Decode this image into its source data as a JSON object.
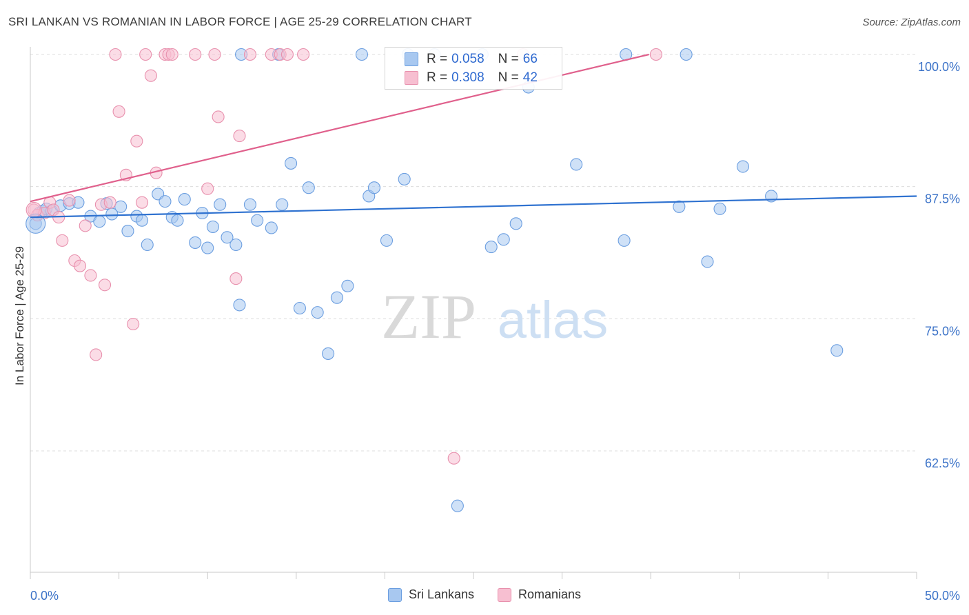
{
  "header": {
    "title": "SRI LANKAN VS ROMANIAN IN LABOR FORCE | AGE 25-29 CORRELATION CHART",
    "source": "Source: ZipAtlas.com"
  },
  "stats": [
    {
      "r_label": "R = ",
      "r_value": "0.058",
      "n_label": "N = ",
      "n_value": "66",
      "color": "#a8c8f0",
      "border": "#6b9ee0"
    },
    {
      "r_label": "R = ",
      "r_value": "0.308",
      "n_label": "N = ",
      "n_value": "42",
      "color": "#f7bfd1",
      "border": "#e890ad"
    }
  ],
  "legend": [
    {
      "label": "Sri Lankans",
      "color": "#a8c8f0",
      "border": "#6b9ee0"
    },
    {
      "label": "Romanians",
      "color": "#f7bfd1",
      "border": "#e890ad"
    }
  ],
  "watermark": {
    "zip": "ZIP",
    "atlas": "atlas"
  },
  "chart_data": {
    "type": "scatter",
    "title": "SRI LANKAN VS ROMANIAN IN LABOR FORCE | AGE 25-29 CORRELATION CHART",
    "xlabel": "",
    "ylabel": "In Labor Force | Age 25-29",
    "xlim": [
      0,
      50
    ],
    "ylim": [
      52.5,
      101.5
    ],
    "x_tick_labels": [
      "0.0%",
      "50.0%"
    ],
    "y_ticks": [
      62.5,
      75.0,
      87.5,
      100.0
    ],
    "y_tick_labels": [
      "62.5%",
      "75.0%",
      "87.5%",
      "100.0%"
    ],
    "grid": "horizontal dashed",
    "series": [
      {
        "name": "Sri Lankans",
        "color": "#6b9ee0",
        "fill": "#a8c8f0",
        "trend": {
          "x": [
            0,
            50
          ],
          "y": [
            84.6,
            86.6
          ],
          "color": "#2f72d0"
        },
        "points": [
          [
            0.3,
            84.0
          ],
          [
            0.5,
            85.0
          ],
          [
            0.7,
            85.2
          ],
          [
            0.9,
            85.4
          ],
          [
            1.2,
            85.2
          ],
          [
            1.7,
            85.7
          ],
          [
            2.2,
            85.9
          ],
          [
            2.7,
            86.0
          ],
          [
            3.4,
            84.7
          ],
          [
            3.9,
            84.2
          ],
          [
            4.3,
            85.9
          ],
          [
            4.6,
            84.9
          ],
          [
            5.1,
            85.6
          ],
          [
            5.5,
            83.3
          ],
          [
            6.0,
            84.7
          ],
          [
            6.3,
            84.3
          ],
          [
            6.6,
            82.0
          ],
          [
            7.2,
            86.8
          ],
          [
            7.6,
            86.1
          ],
          [
            8.0,
            84.6
          ],
          [
            8.3,
            84.3
          ],
          [
            8.7,
            86.3
          ],
          [
            9.3,
            82.2
          ],
          [
            9.7,
            85.0
          ],
          [
            10.0,
            81.7
          ],
          [
            10.3,
            83.7
          ],
          [
            10.7,
            85.8
          ],
          [
            11.1,
            82.7
          ],
          [
            11.6,
            82.0
          ],
          [
            11.8,
            76.3
          ],
          [
            12.4,
            85.8
          ],
          [
            12.8,
            84.3
          ],
          [
            13.6,
            83.6
          ],
          [
            14.2,
            85.8
          ],
          [
            14.7,
            89.7
          ],
          [
            15.2,
            76.0
          ],
          [
            15.7,
            87.4
          ],
          [
            16.2,
            75.6
          ],
          [
            16.8,
            71.7
          ],
          [
            17.3,
            77.0
          ],
          [
            17.9,
            78.1
          ],
          [
            18.7,
            100.0
          ],
          [
            19.1,
            86.6
          ],
          [
            19.4,
            87.4
          ],
          [
            20.1,
            82.4
          ],
          [
            21.1,
            88.2
          ],
          [
            21.3,
            100.0
          ],
          [
            22.8,
            100.0
          ],
          [
            24.1,
            57.3
          ],
          [
            26.0,
            81.8
          ],
          [
            26.7,
            82.5
          ],
          [
            27.4,
            84.0
          ],
          [
            28.1,
            96.9
          ],
          [
            30.8,
            89.6
          ],
          [
            33.5,
            82.4
          ],
          [
            33.6,
            100.0
          ],
          [
            36.6,
            85.6
          ],
          [
            38.2,
            80.4
          ],
          [
            38.9,
            85.4
          ],
          [
            40.2,
            89.4
          ],
          [
            41.8,
            86.6
          ],
          [
            45.5,
            72.0
          ],
          [
            11.9,
            100.0
          ],
          [
            14.0,
            100.0
          ],
          [
            25.5,
            100.0
          ],
          [
            37.0,
            100.0
          ]
        ]
      },
      {
        "name": "Romanians",
        "color": "#e890ad",
        "fill": "#f7bfd1",
        "trend": {
          "x": [
            0,
            34.9
          ],
          "y": [
            86.1,
            100.0
          ],
          "color": "#e0608c"
        },
        "points": [
          [
            0.2,
            85.3
          ],
          [
            0.4,
            84.8
          ],
          [
            0.8,
            85.0
          ],
          [
            1.1,
            86.0
          ],
          [
            1.3,
            85.3
          ],
          [
            1.6,
            84.6
          ],
          [
            1.8,
            82.4
          ],
          [
            2.2,
            86.2
          ],
          [
            2.5,
            80.5
          ],
          [
            2.8,
            80.0
          ],
          [
            3.1,
            83.8
          ],
          [
            3.4,
            79.1
          ],
          [
            3.7,
            71.6
          ],
          [
            4.0,
            85.8
          ],
          [
            4.2,
            78.2
          ],
          [
            4.5,
            86.0
          ],
          [
            4.8,
            100.0
          ],
          [
            5.0,
            94.6
          ],
          [
            5.4,
            88.6
          ],
          [
            5.8,
            74.5
          ],
          [
            6.0,
            91.8
          ],
          [
            6.3,
            86.0
          ],
          [
            6.5,
            100.0
          ],
          [
            6.8,
            98.0
          ],
          [
            7.1,
            88.8
          ],
          [
            7.6,
            100.0
          ],
          [
            7.8,
            100.0
          ],
          [
            8.0,
            100.0
          ],
          [
            9.3,
            100.0
          ],
          [
            10.0,
            87.3
          ],
          [
            10.4,
            100.0
          ],
          [
            10.6,
            94.1
          ],
          [
            11.6,
            78.8
          ],
          [
            11.8,
            92.3
          ],
          [
            12.4,
            100.0
          ],
          [
            13.6,
            100.0
          ],
          [
            14.1,
            100.0
          ],
          [
            14.5,
            100.0
          ],
          [
            15.4,
            100.0
          ],
          [
            23.9,
            61.8
          ],
          [
            27.8,
            100.0
          ],
          [
            35.3,
            100.0
          ]
        ]
      }
    ]
  }
}
